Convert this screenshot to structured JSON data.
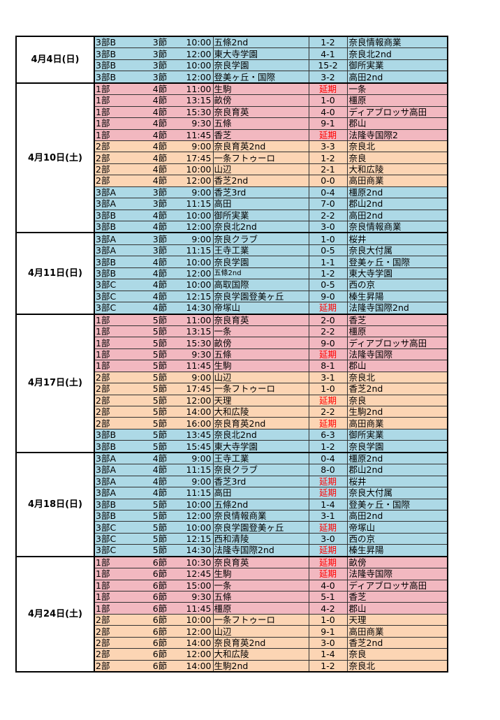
{
  "colors": {
    "blue": "#add9e6",
    "red": "#f2b8c0",
    "orange": "#fcd5b4",
    "postponed": "#ff0000"
  },
  "days": [
    {
      "date": "4月4日(日)",
      "matches": [
        {
          "div": "3部B",
          "round": "3節",
          "time": "10:00",
          "home": "五條2nd",
          "score": "1-2",
          "away": "奈良情報商業",
          "color": "blue"
        },
        {
          "div": "3部B",
          "round": "3節",
          "time": "12:00",
          "home": "東大寺学園",
          "score": "4-1",
          "away": "奈良北2nd",
          "color": "blue"
        },
        {
          "div": "3部B",
          "round": "3節",
          "time": "10:00",
          "home": "奈良学園",
          "score": "15-2",
          "away": "御所実業",
          "color": "blue"
        },
        {
          "div": "3部B",
          "round": "3節",
          "time": "12:00",
          "home": "登美ヶ丘・国際",
          "score": "3-2",
          "away": "高田2nd",
          "color": "blue"
        }
      ]
    },
    {
      "date": "4月10日(土)",
      "matches": [
        {
          "div": "1部",
          "round": "4節",
          "time": "11:00",
          "home": "生駒",
          "score": "延期",
          "away": "一条",
          "color": "red"
        },
        {
          "div": "1部",
          "round": "4節",
          "time": "13:15",
          "home": "畝傍",
          "score": "1-0",
          "away": "橿原",
          "color": "red"
        },
        {
          "div": "1部",
          "round": "4節",
          "time": "15:30",
          "home": "奈良育英",
          "score": "4-0",
          "away": "ディアブロッサ高田",
          "color": "red"
        },
        {
          "div": "1部",
          "round": "4節",
          "time": "9:30",
          "home": "五條",
          "score": "9-1",
          "away": "郡山",
          "color": "red"
        },
        {
          "div": "1部",
          "round": "4節",
          "time": "11:45",
          "home": "香芝",
          "score": "延期",
          "away": "法隆寺国際2",
          "color": "red"
        },
        {
          "div": "2部",
          "round": "4節",
          "time": "9:00",
          "home": "奈良育英2nd",
          "score": "3-3",
          "away": "奈良北",
          "color": "orange"
        },
        {
          "div": "2部",
          "round": "4節",
          "time": "17:45",
          "home": "一条フトゥーロ",
          "score": "1-2",
          "away": "奈良",
          "color": "orange"
        },
        {
          "div": "2部",
          "round": "4節",
          "time": "10:00",
          "home": "山辺",
          "score": "2-1",
          "away": "大和広陵",
          "color": "orange"
        },
        {
          "div": "2部",
          "round": "4節",
          "time": "12:00",
          "home": "香芝2nd",
          "score": "0-0",
          "away": "高田商業",
          "color": "orange"
        },
        {
          "div": "3部A",
          "round": "3節",
          "time": "9:00",
          "home": "香芝3rd",
          "score": "0-4",
          "away": "橿原2nd",
          "color": "blue"
        },
        {
          "div": "3部A",
          "round": "3節",
          "time": "11:15",
          "home": "高田",
          "score": "7-0",
          "away": "郡山2nd",
          "color": "blue"
        },
        {
          "div": "3部B",
          "round": "4節",
          "time": "10:00",
          "home": "御所実業",
          "score": "2-2",
          "away": "高田2nd",
          "color": "blue"
        },
        {
          "div": "3部B",
          "round": "4節",
          "time": "12:00",
          "home": "奈良北2nd",
          "score": "3-0",
          "away": "奈良情報商業",
          "color": "blue"
        }
      ]
    },
    {
      "date": "4月11日(日)",
      "matches": [
        {
          "div": "3部A",
          "round": "3節",
          "time": "9:00",
          "home": "奈良クラブ",
          "score": "1-0",
          "away": "桜井",
          "color": "blue"
        },
        {
          "div": "3部A",
          "round": "3節",
          "time": "11:15",
          "home": "王寺工業",
          "score": "0-5",
          "away": "奈良大付属",
          "color": "blue"
        },
        {
          "div": "3部B",
          "round": "4節",
          "time": "10:00",
          "home": "奈良学園",
          "score": "1-1",
          "away": "登美ヶ丘・国際",
          "color": "blue"
        },
        {
          "div": "3部B",
          "round": "4節",
          "time": "12:00",
          "home": "五條2nd",
          "score": "1-2",
          "away": "東大寺学園",
          "color": "blue",
          "small": true
        },
        {
          "div": "3部C",
          "round": "4節",
          "time": "10:00",
          "home": "高取国際",
          "score": "0-5",
          "away": "西の京",
          "color": "blue"
        },
        {
          "div": "3部C",
          "round": "4節",
          "time": "12:15",
          "home": "奈良学園登美ヶ丘",
          "score": "9-0",
          "away": "榛生昇陽",
          "color": "blue"
        },
        {
          "div": "3部C",
          "round": "4節",
          "time": "14:30",
          "home": "帝塚山",
          "score": "延期",
          "away": "法隆寺国際2nd",
          "color": "blue"
        }
      ]
    },
    {
      "date": "4月17日(土)",
      "matches": [
        {
          "div": "1部",
          "round": "5節",
          "time": "11:00",
          "home": "奈良育英",
          "score": "2-0",
          "away": "香芝",
          "color": "red"
        },
        {
          "div": "1部",
          "round": "5節",
          "time": "13:15",
          "home": "一条",
          "score": "2-2",
          "away": "橿原",
          "color": "red"
        },
        {
          "div": "1部",
          "round": "5節",
          "time": "15:30",
          "home": "畝傍",
          "score": "9-0",
          "away": "ディアブロッサ高田",
          "color": "red"
        },
        {
          "div": "1部",
          "round": "5節",
          "time": "9:30",
          "home": "五條",
          "score": "延期",
          "away": "法隆寺国際",
          "color": "red"
        },
        {
          "div": "1部",
          "round": "5節",
          "time": "11:45",
          "home": "生駒",
          "score": "8-1",
          "away": "郡山",
          "color": "red"
        },
        {
          "div": "2部",
          "round": "5節",
          "time": "9:00",
          "home": "山辺",
          "score": "3-1",
          "away": "奈良北",
          "color": "orange"
        },
        {
          "div": "2部",
          "round": "5節",
          "time": "17:45",
          "home": "一条フトゥーロ",
          "score": "1-0",
          "away": "香芝2nd",
          "color": "orange"
        },
        {
          "div": "2部",
          "round": "5節",
          "time": "12:00",
          "home": "天理",
          "score": "延期",
          "away": "奈良",
          "color": "orange"
        },
        {
          "div": "2部",
          "round": "5節",
          "time": "14:00",
          "home": "大和広陵",
          "score": "2-2",
          "away": "生駒2nd",
          "color": "orange"
        },
        {
          "div": "2部",
          "round": "5節",
          "time": "16:00",
          "home": "奈良育英2nd",
          "score": "延期",
          "away": "高田商業",
          "color": "orange"
        },
        {
          "div": "3部B",
          "round": "5節",
          "time": "13:45",
          "home": "奈良北2nd",
          "score": "6-3",
          "away": "御所実業",
          "color": "blue"
        },
        {
          "div": "3部B",
          "round": "5節",
          "time": "15:45",
          "home": "東大寺学園",
          "score": "1-2",
          "away": "奈良学園",
          "color": "blue"
        }
      ]
    },
    {
      "date": "4月18日(日)",
      "matches": [
        {
          "div": "3部A",
          "round": "4節",
          "time": "9:00",
          "home": "王寺工業",
          "score": "0-4",
          "away": "橿原2nd",
          "color": "blue"
        },
        {
          "div": "3部A",
          "round": "4節",
          "time": "11:15",
          "home": "奈良クラブ",
          "score": "8-0",
          "away": "郡山2nd",
          "color": "blue"
        },
        {
          "div": "3部A",
          "round": "4節",
          "time": "9:00",
          "home": "香芝3rd",
          "score": "延期",
          "away": "桜井",
          "color": "blue"
        },
        {
          "div": "3部A",
          "round": "4節",
          "time": "11:15",
          "home": "高田",
          "score": "延期",
          "away": "奈良大付属",
          "color": "blue"
        },
        {
          "div": "3部B",
          "round": "5節",
          "time": "10:00",
          "home": "五條2nd",
          "score": "1-4",
          "away": "登美ヶ丘・国際",
          "color": "blue"
        },
        {
          "div": "3部B",
          "round": "5節",
          "time": "12:00",
          "home": "奈良情報商業",
          "score": "3-1",
          "away": "高田2nd",
          "color": "blue"
        },
        {
          "div": "3部C",
          "round": "5節",
          "time": "10:00",
          "home": "奈良学園登美ヶ丘",
          "score": "延期",
          "away": "帝塚山",
          "color": "blue"
        },
        {
          "div": "3部C",
          "round": "5節",
          "time": "12:15",
          "home": "西和清陵",
          "score": "3-0",
          "away": "西の京",
          "color": "blue"
        },
        {
          "div": "3部C",
          "round": "5節",
          "time": "14:30",
          "home": "法隆寺国際2nd",
          "score": "延期",
          "away": "榛生昇陽",
          "color": "blue"
        }
      ]
    },
    {
      "date": "4月24日(土)",
      "matches": [
        {
          "div": "1部",
          "round": "6節",
          "time": "10:30",
          "home": "奈良育英",
          "score": "延期",
          "away": "畝傍",
          "color": "red"
        },
        {
          "div": "1部",
          "round": "6節",
          "time": "12:45",
          "home": "生駒",
          "score": "延期",
          "away": "法隆寺国際",
          "color": "red"
        },
        {
          "div": "1部",
          "round": "6節",
          "time": "15:00",
          "home": "一条",
          "score": "4-0",
          "away": "ディアブロッサ高田",
          "color": "red"
        },
        {
          "div": "1部",
          "round": "6節",
          "time": "9:30",
          "home": "五條",
          "score": "5-1",
          "away": "香芝",
          "color": "red"
        },
        {
          "div": "1部",
          "round": "6節",
          "time": "11:45",
          "home": "橿原",
          "score": "4-2",
          "away": "郡山",
          "color": "red"
        },
        {
          "div": "2部",
          "round": "6節",
          "time": "10:00",
          "home": "一条フトゥーロ",
          "score": "1-0",
          "away": "天理",
          "color": "orange"
        },
        {
          "div": "2部",
          "round": "6節",
          "time": "12:00",
          "home": "山辺",
          "score": "9-1",
          "away": "高田商業",
          "color": "orange"
        },
        {
          "div": "2部",
          "round": "6節",
          "time": "14:00",
          "home": "奈良育英2nd",
          "score": "3-0",
          "away": "香芝2nd",
          "color": "orange"
        },
        {
          "div": "2部",
          "round": "6節",
          "time": "12:00",
          "home": "大和広陵",
          "score": "1-4",
          "away": "奈良",
          "color": "orange"
        },
        {
          "div": "2部",
          "round": "6節",
          "time": "14:00",
          "home": "生駒2nd",
          "score": "1-2",
          "away": "奈良北",
          "color": "orange"
        }
      ]
    }
  ]
}
